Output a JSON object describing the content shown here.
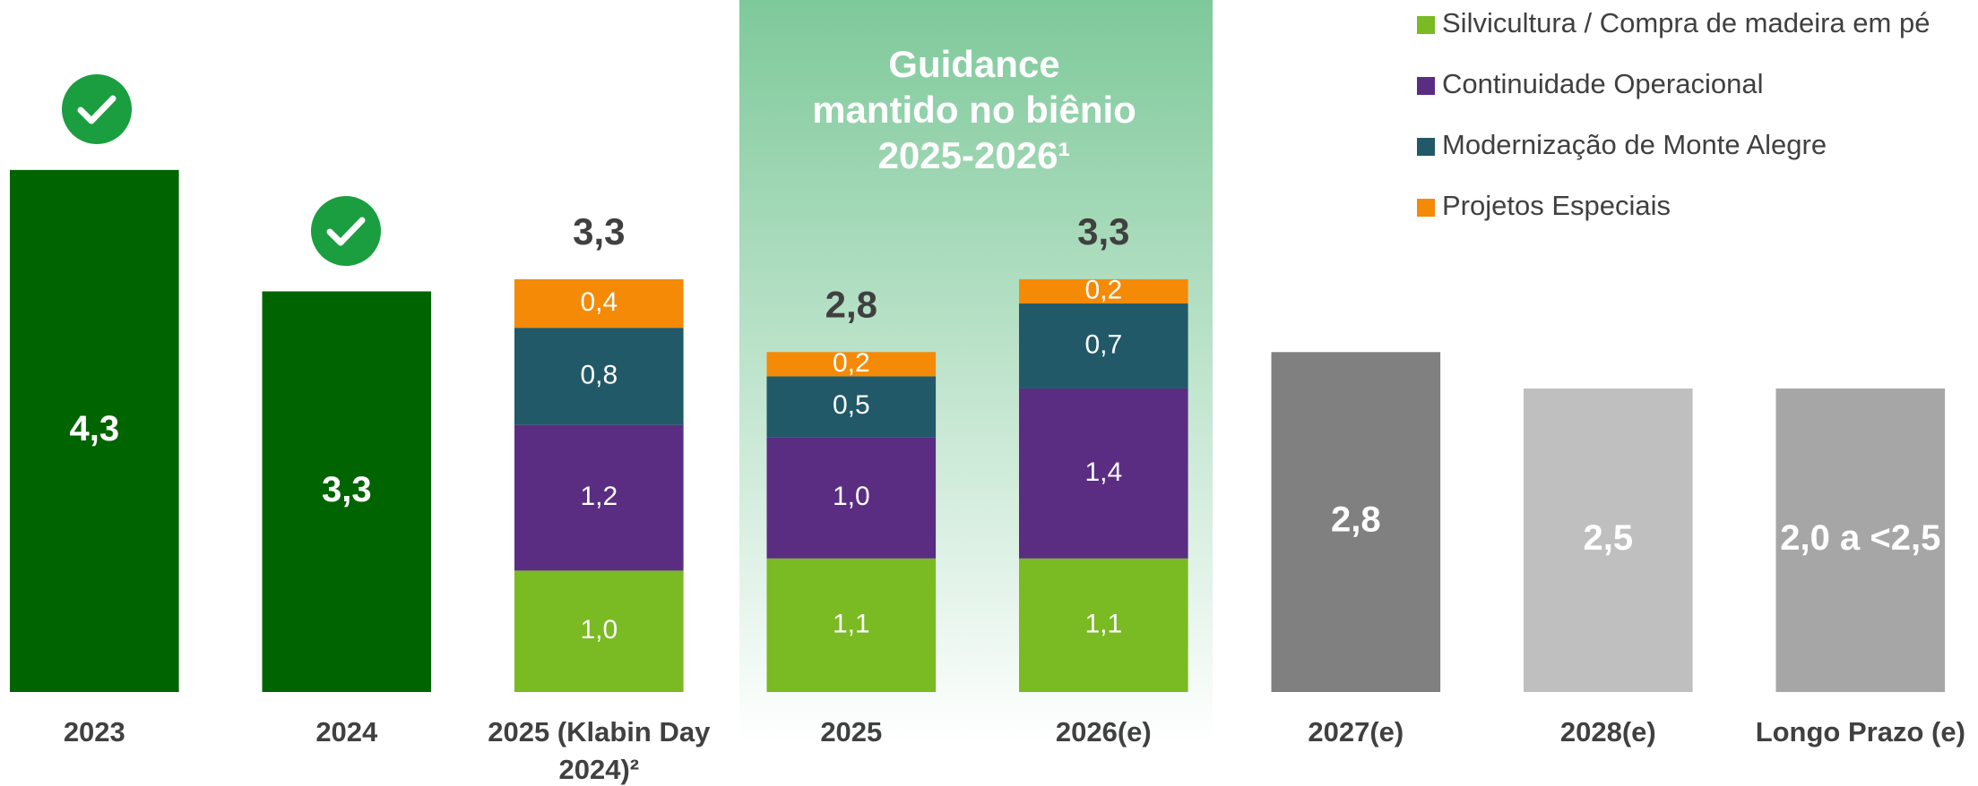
{
  "chart_data": {
    "type": "stacked-bar",
    "categories": [
      "2023",
      "2024",
      "2025 (Klabin Day 2024)²",
      "2025",
      "2026(e)",
      "2027(e)",
      "2028(e)",
      "Longo Prazo (e)"
    ],
    "series": [
      {
        "name": "Silvicultura / Compra de madeira em pé",
        "color": "#7aba22",
        "values": [
          null,
          null,
          1.0,
          1.1,
          1.1,
          null,
          null,
          null
        ],
        "value_labels": [
          null,
          null,
          "1,0",
          "1,1",
          "1,1",
          null,
          null,
          null
        ]
      },
      {
        "name": "Continuidade Operacional",
        "color": "#5a2d82",
        "values": [
          null,
          null,
          1.2,
          1.0,
          1.4,
          null,
          null,
          null
        ],
        "value_labels": [
          null,
          null,
          "1,2",
          "1,0",
          "1,4",
          null,
          null,
          null
        ]
      },
      {
        "name": "Modernização de Monte Alegre",
        "color": "#215968",
        "values": [
          null,
          null,
          0.8,
          0.5,
          0.7,
          null,
          null,
          null
        ],
        "value_labels": [
          null,
          null,
          "0,8",
          "0,5",
          "0,7",
          null,
          null,
          null
        ]
      },
      {
        "name": "Projetos Especiais",
        "color": "#f58a07",
        "values": [
          null,
          null,
          0.4,
          0.2,
          0.2,
          null,
          null,
          null
        ],
        "value_labels": [
          null,
          null,
          "0,4",
          "0,2",
          "0,2",
          null,
          null,
          null
        ]
      }
    ],
    "single_bars": {
      "values": [
        4.3,
        3.3,
        null,
        null,
        null,
        2.8,
        2.5,
        2.5
      ],
      "value_labels": [
        "4,3",
        "3,3",
        null,
        null,
        null,
        "2,8",
        "2,5",
        "2,0 a <2,5"
      ],
      "colors": [
        "#006400",
        "#006400",
        null,
        null,
        null,
        "#808080",
        "#bfbfbf",
        "#a6a6a6"
      ]
    },
    "totals": {
      "values": [
        null,
        null,
        3.3,
        2.8,
        3.3,
        null,
        null,
        null
      ],
      "value_labels": [
        null,
        null,
        "3,3",
        "2,8",
        "3,3",
        null,
        null,
        null
      ]
    },
    "annotation": [
      "Guidance",
      "mantido no biênio",
      "2025-2026¹"
    ],
    "ylim": [
      0,
      5.7
    ]
  }
}
